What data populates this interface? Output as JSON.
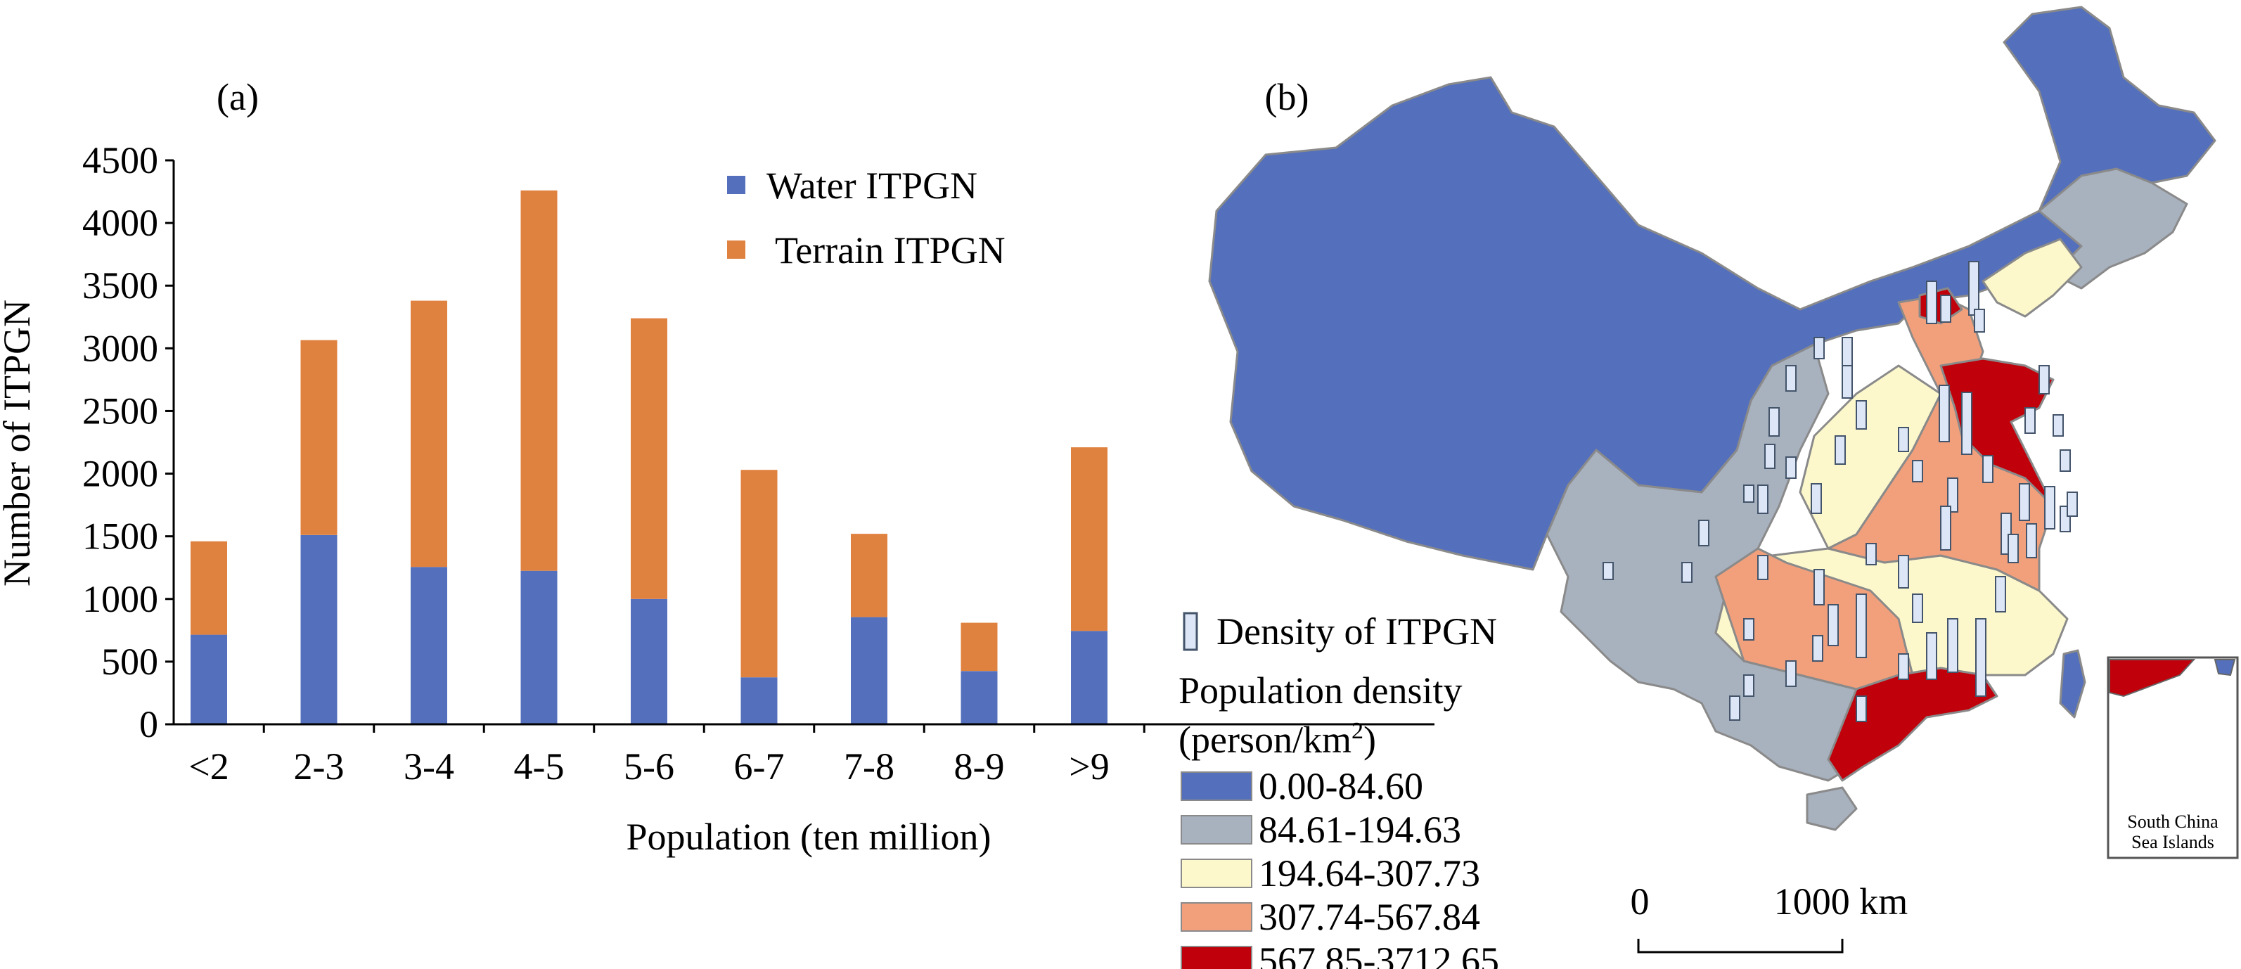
{
  "chart_data": [
    {
      "type": "bar",
      "panel_label": "(a)",
      "stacked": true,
      "categories": [
        "<2",
        "2-3",
        "3-4",
        "4-5",
        "5-6",
        "6-7",
        "7-8",
        "8-9",
        ">9"
      ],
      "series": [
        {
          "name": "Water ITPGN",
          "color": "#5470BC",
          "values": [
            715,
            1510,
            1255,
            1225,
            1000,
            375,
            855,
            425,
            745
          ]
        },
        {
          "name": "Terrain ITPGN",
          "color": "#E0823F",
          "values": [
            745,
            1555,
            2125,
            3035,
            2240,
            1655,
            665,
            385,
            1465
          ]
        }
      ],
      "xlabel": "Population (ten million)",
      "ylabel": "Number of ITPGN",
      "ylim": [
        0,
        4500
      ],
      "yticks": [
        0,
        500,
        1000,
        1500,
        2000,
        2500,
        3000,
        3500,
        4000,
        4500
      ],
      "grid": false,
      "legend_position": "top-right"
    },
    {
      "type": "map",
      "panel_label": "(b)",
      "bar_legend_label": "Density of ITPGN",
      "legend_title_line1": "Population density",
      "legend_title_line2": "(person/km",
      "legend_title_sup": "2",
      "legend_title_close": ")",
      "classes": [
        {
          "range": "0.00-84.60",
          "color": "#5470BC"
        },
        {
          "range": "84.61-194.63",
          "color": "#A8B1BE"
        },
        {
          "range": "194.64-307.73",
          "color": "#FCF8CC"
        },
        {
          "range": "307.74-567.84",
          "color": "#F2A07C"
        },
        {
          "range": "567.85-3712.65",
          "color": "#C0000B"
        }
      ],
      "scale_start": "0",
      "scale_end": "1000 km",
      "inset_label_line1": "South China",
      "inset_label_line2": "Sea Islands"
    }
  ]
}
